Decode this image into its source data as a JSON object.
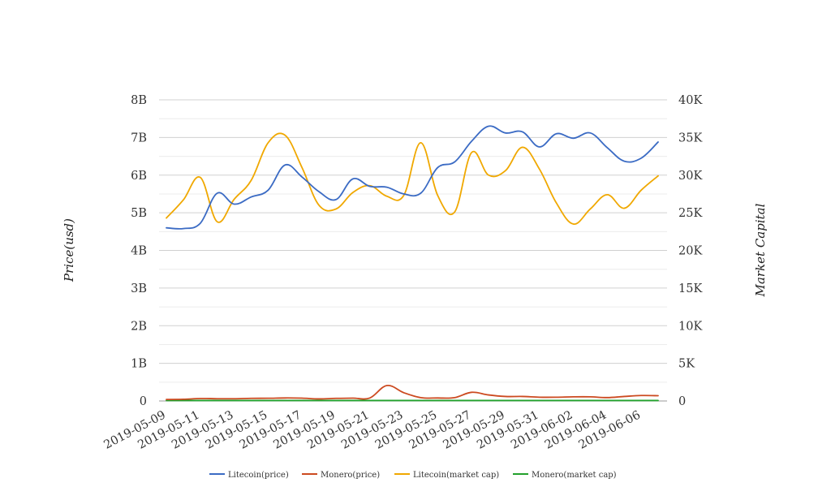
{
  "chart_data": {
    "type": "line",
    "x": [
      "2019-05-09",
      "2019-05-10",
      "2019-05-11",
      "2019-05-12",
      "2019-05-13",
      "2019-05-14",
      "2019-05-15",
      "2019-05-16",
      "2019-05-17",
      "2019-05-18",
      "2019-05-19",
      "2019-05-20",
      "2019-05-21",
      "2019-05-22",
      "2019-05-23",
      "2019-05-24",
      "2019-05-25",
      "2019-05-26",
      "2019-05-27",
      "2019-05-28",
      "2019-05-29",
      "2019-05-30",
      "2019-05-31",
      "2019-06-01",
      "2019-06-02",
      "2019-06-03",
      "2019-06-04",
      "2019-06-05",
      "2019-06-06",
      "2019-06-07"
    ],
    "x_tick_labels": [
      "2019-05-09",
      "2019-05-11",
      "2019-05-13",
      "2019-05-15",
      "2019-05-17",
      "2019-05-19",
      "2019-05-21",
      "2019-05-23",
      "2019-05-25",
      "2019-05-27",
      "2019-05-29",
      "2019-05-31",
      "2019-06-02",
      "2019-06-04",
      "2019-06-06"
    ],
    "y_left": {
      "label": "Price(usd)",
      "range": [
        0,
        8000000000
      ],
      "tick_values": [
        0,
        1000000000,
        2000000000,
        3000000000,
        4000000000,
        5000000000,
        6000000000,
        7000000000,
        8000000000
      ],
      "tick_labels": [
        "0",
        "1B",
        "2B",
        "3B",
        "4B",
        "5B",
        "6B",
        "7B",
        "8B"
      ]
    },
    "y_right": {
      "label": "Market Capital",
      "range": [
        0,
        40000
      ],
      "tick_values": [
        0,
        5000,
        10000,
        15000,
        20000,
        25000,
        30000,
        35000,
        40000
      ],
      "tick_labels": [
        "0",
        "5K",
        "10K",
        "15K",
        "20K",
        "25K",
        "30K",
        "35K",
        "40K"
      ]
    },
    "grid": true,
    "legend_position": "bottom",
    "series": [
      {
        "name": "Litecoin(price)",
        "axis": "left",
        "color": "#3b6bc4",
        "values": [
          4600000000,
          4580000000,
          4720000000,
          5520000000,
          5230000000,
          5420000000,
          5600000000,
          6270000000,
          5950000000,
          5560000000,
          5350000000,
          5900000000,
          5700000000,
          5680000000,
          5500000000,
          5520000000,
          6200000000,
          6350000000,
          6900000000,
          7300000000,
          7120000000,
          7150000000,
          6750000000,
          7100000000,
          6980000000,
          7120000000,
          6730000000,
          6370000000,
          6450000000,
          6880000000
        ]
      },
      {
        "name": "Monero(price)",
        "axis": "left",
        "color": "#cc4a20",
        "values": [
          40000000,
          45000000,
          65000000,
          60000000,
          60000000,
          70000000,
          72000000,
          80000000,
          75000000,
          55000000,
          70000000,
          75000000,
          80000000,
          410000000,
          220000000,
          90000000,
          80000000,
          90000000,
          230000000,
          160000000,
          120000000,
          120000000,
          100000000,
          100000000,
          110000000,
          110000000,
          90000000,
          120000000,
          145000000,
          140000000
        ]
      },
      {
        "name": "Litecoin(market cap)",
        "axis": "right",
        "color": "#f0a800",
        "values": [
          24300,
          26700,
          29700,
          23800,
          26800,
          29300,
          34300,
          35300,
          31000,
          26000,
          25500,
          27700,
          28600,
          27200,
          27300,
          34300,
          27300,
          25100,
          33000,
          30000,
          30600,
          33700,
          30800,
          26300,
          23500,
          25500,
          27400,
          25600,
          28000,
          29900
        ]
      },
      {
        "name": "Monero(market cap)",
        "axis": "right",
        "color": "#22a12c",
        "values": [
          60,
          60,
          60,
          60,
          60,
          60,
          60,
          60,
          60,
          60,
          60,
          60,
          60,
          60,
          60,
          60,
          60,
          60,
          60,
          60,
          60,
          60,
          60,
          60,
          60,
          60,
          60,
          60,
          60,
          60
        ]
      }
    ]
  }
}
